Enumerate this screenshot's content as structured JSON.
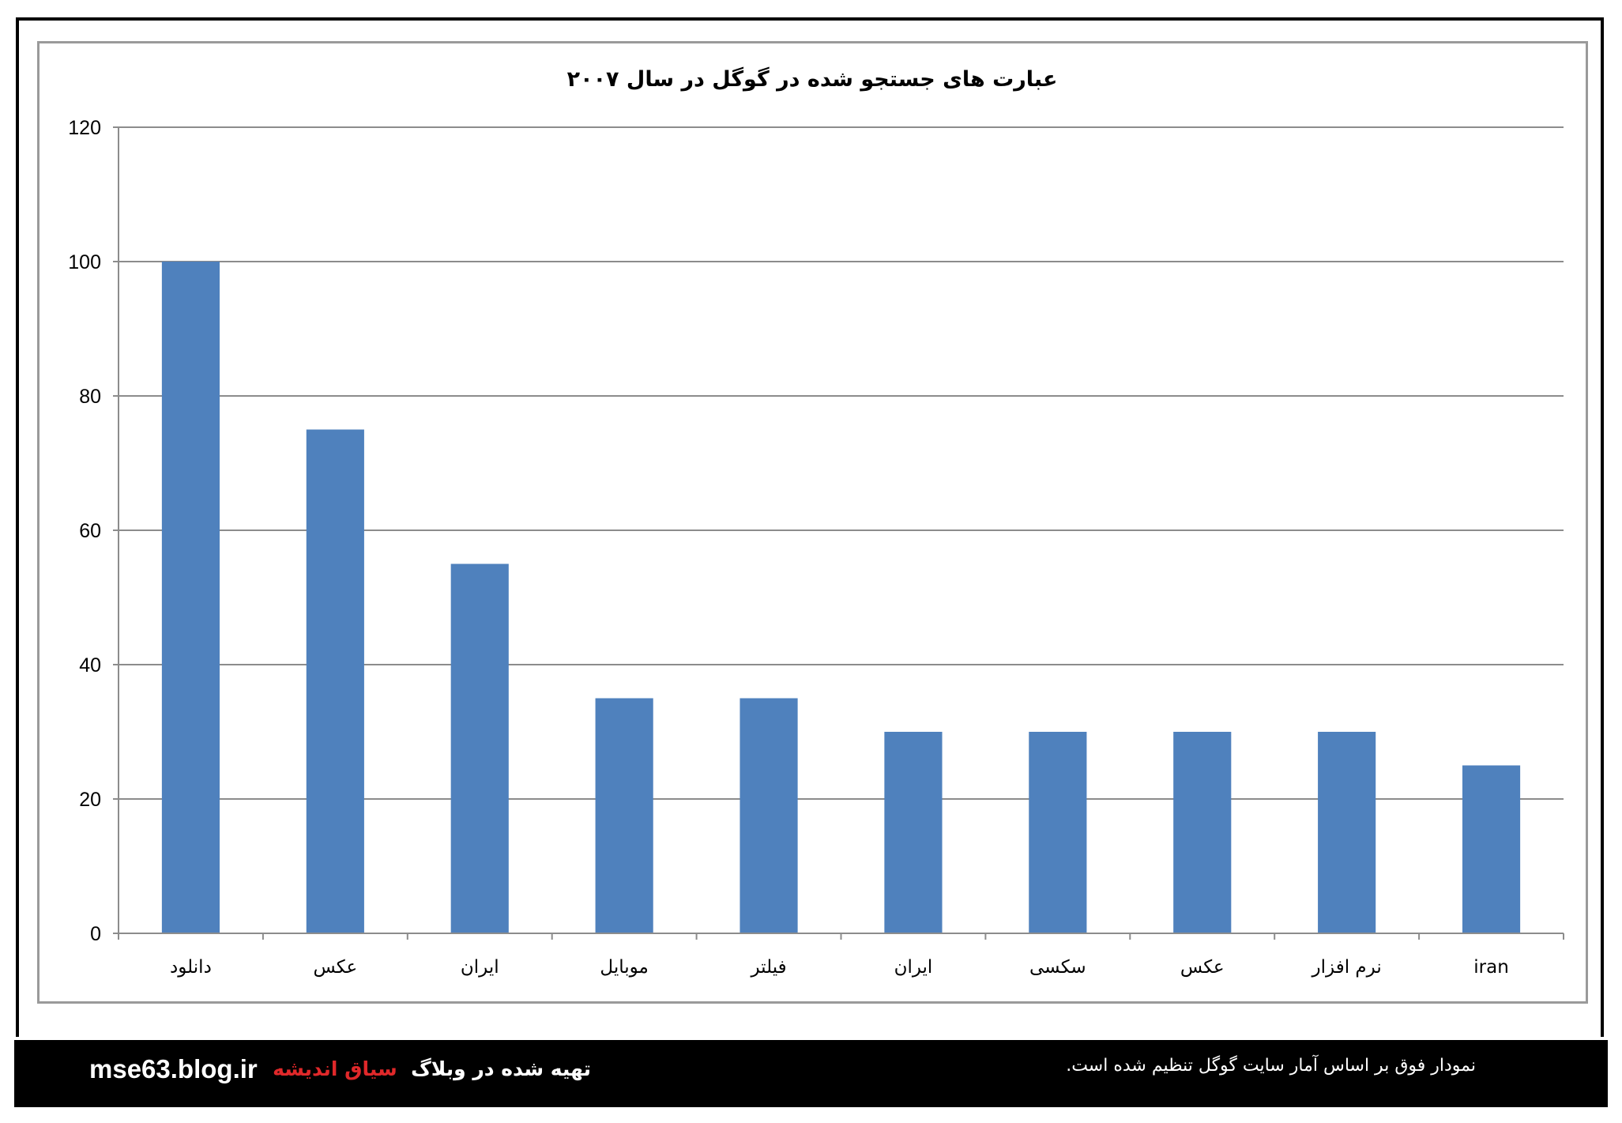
{
  "chart_data": {
    "type": "bar",
    "title": "عبارت های جستجو شده در گوگل در سال ۲۰۰۷",
    "categories": [
      "دانلود",
      "عکس",
      "ایران",
      "موبایل",
      "فیلتر",
      "ایران",
      "سکسی",
      "عکس",
      "نرم افزار",
      "iran"
    ],
    "values": [
      100,
      75,
      55,
      35,
      35,
      30,
      30,
      30,
      30,
      25
    ],
    "ylim": [
      0,
      120
    ],
    "yticks": [
      "0",
      "20",
      "40",
      "60",
      "80",
      "100",
      "120"
    ],
    "ytick_values": [
      0,
      20,
      40,
      60,
      80,
      100,
      120
    ],
    "grid": true,
    "legend": "none",
    "bar_color": "#4f81bd"
  },
  "footer": {
    "url": "mse63.blog.ir",
    "credit_prefix": "تهیه شده در وبلاگ",
    "blog_name": "سیاق اندیشه",
    "note": "نمودار فوق بر اساس آمار سایت گوگل تنظیم شده است."
  }
}
